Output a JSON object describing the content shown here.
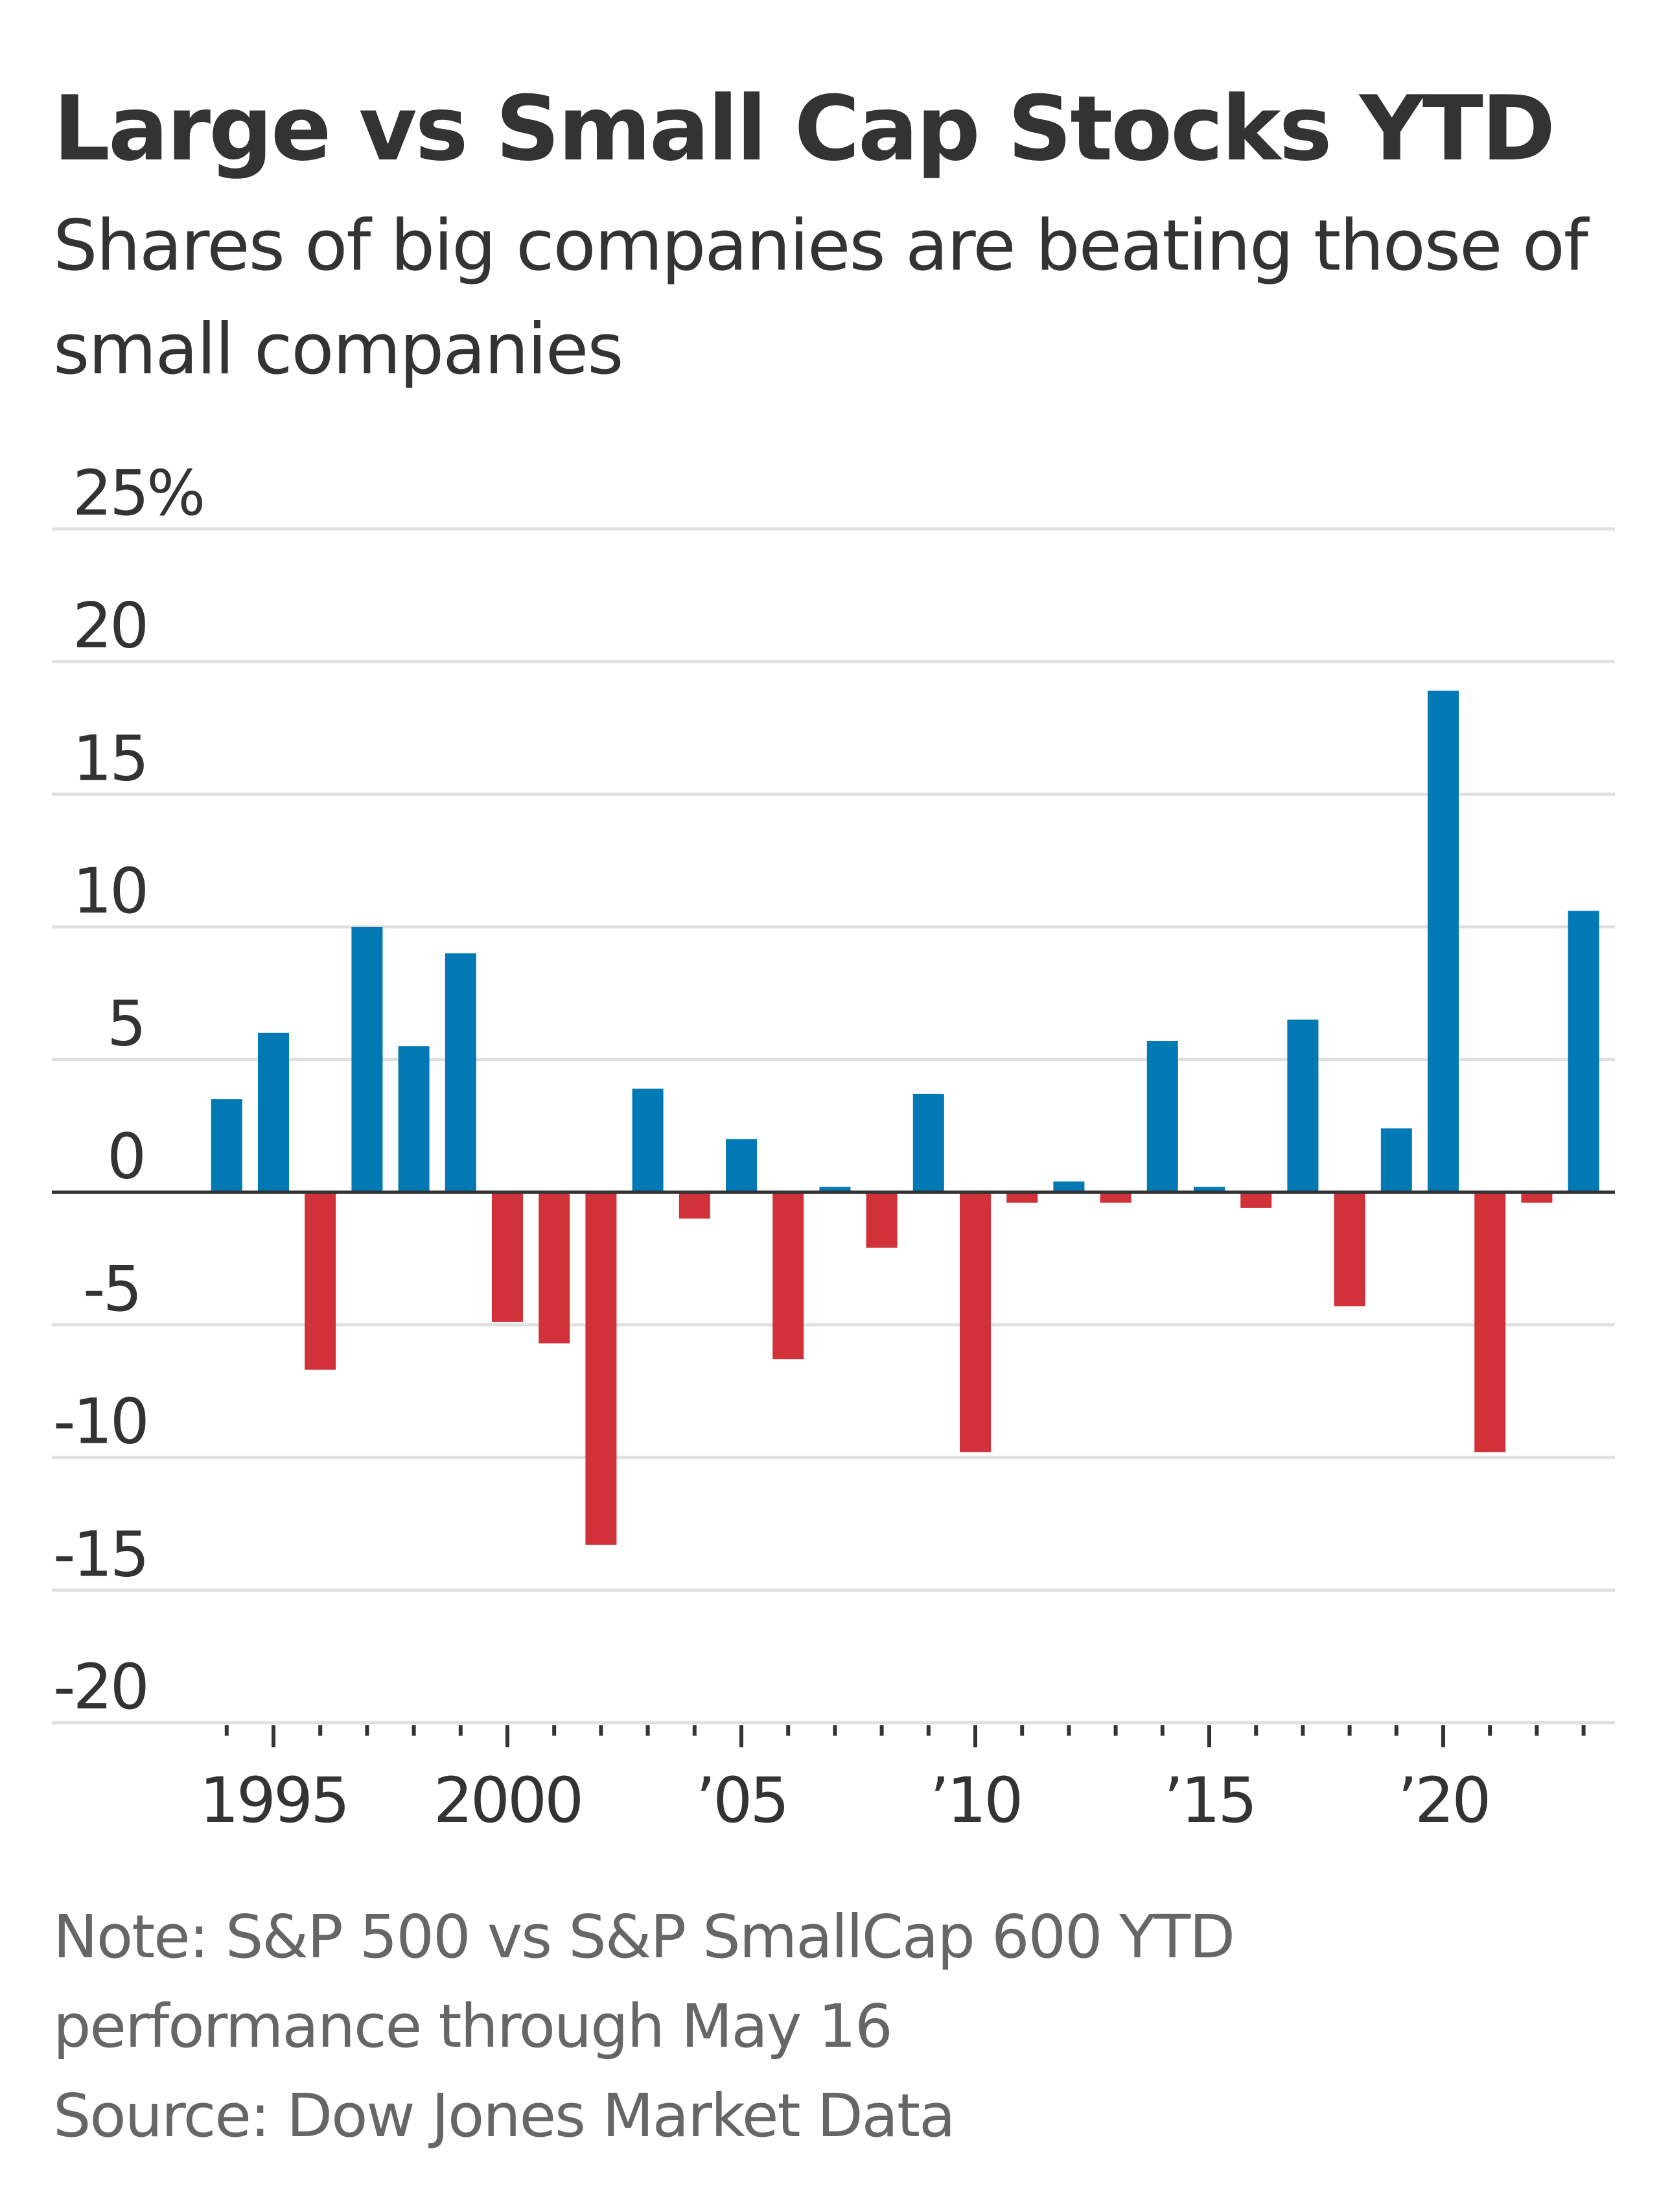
{
  "colors": {
    "positive": "#0079b4",
    "negative": "#d1323a",
    "text": "#333333",
    "note": "#666666",
    "grid": "#e0e0e0",
    "zero": "#333333"
  },
  "chart_data": {
    "type": "bar",
    "title": "Large vs Small Cap Stocks YTD",
    "subtitle": "Shares of big companies are beating those of small companies",
    "x": [
      1994,
      1995,
      1996,
      1997,
      1998,
      1999,
      2000,
      2001,
      2002,
      2003,
      2004,
      2005,
      2006,
      2007,
      2008,
      2009,
      2010,
      2011,
      2012,
      2013,
      2014,
      2015,
      2016,
      2017,
      2018,
      2019,
      2020,
      2021,
      2022,
      2023
    ],
    "values": [
      3.5,
      6.0,
      -6.7,
      10.0,
      5.5,
      9.0,
      -4.9,
      -5.7,
      -13.3,
      3.9,
      -1.0,
      2.0,
      -6.3,
      0.2,
      -2.1,
      3.7,
      -9.8,
      -0.4,
      0.4,
      -0.4,
      5.7,
      0.2,
      -0.6,
      6.5,
      -4.3,
      2.4,
      18.9,
      -9.8,
      -0.4,
      10.6
    ],
    "ylim": [
      -20,
      25
    ],
    "yticks": [
      {
        "v": 25,
        "label": "25%"
      },
      {
        "v": 20,
        "label": "20"
      },
      {
        "v": 15,
        "label": "15"
      },
      {
        "v": 10,
        "label": "10"
      },
      {
        "v": 5,
        "label": "5"
      },
      {
        "v": 0,
        "label": "0"
      },
      {
        "v": -5,
        "label": "-5"
      },
      {
        "v": -10,
        "label": "-10"
      },
      {
        "v": -15,
        "label": "-15"
      },
      {
        "v": -20,
        "label": "-20"
      }
    ],
    "xticks": [
      {
        "v": 1995,
        "label": "1995"
      },
      {
        "v": 2000,
        "label": "2000"
      },
      {
        "v": 2005,
        "label": "’05"
      },
      {
        "v": 2010,
        "label": "’10"
      },
      {
        "v": 2015,
        "label": "’15"
      },
      {
        "v": 2020,
        "label": "’20"
      }
    ],
    "grid": true,
    "note_lines": [
      "Note: S&P 500 vs S&P SmallCap 600 YTD",
      "performance through May 16"
    ],
    "source": "Source: Dow Jones Market Data"
  }
}
